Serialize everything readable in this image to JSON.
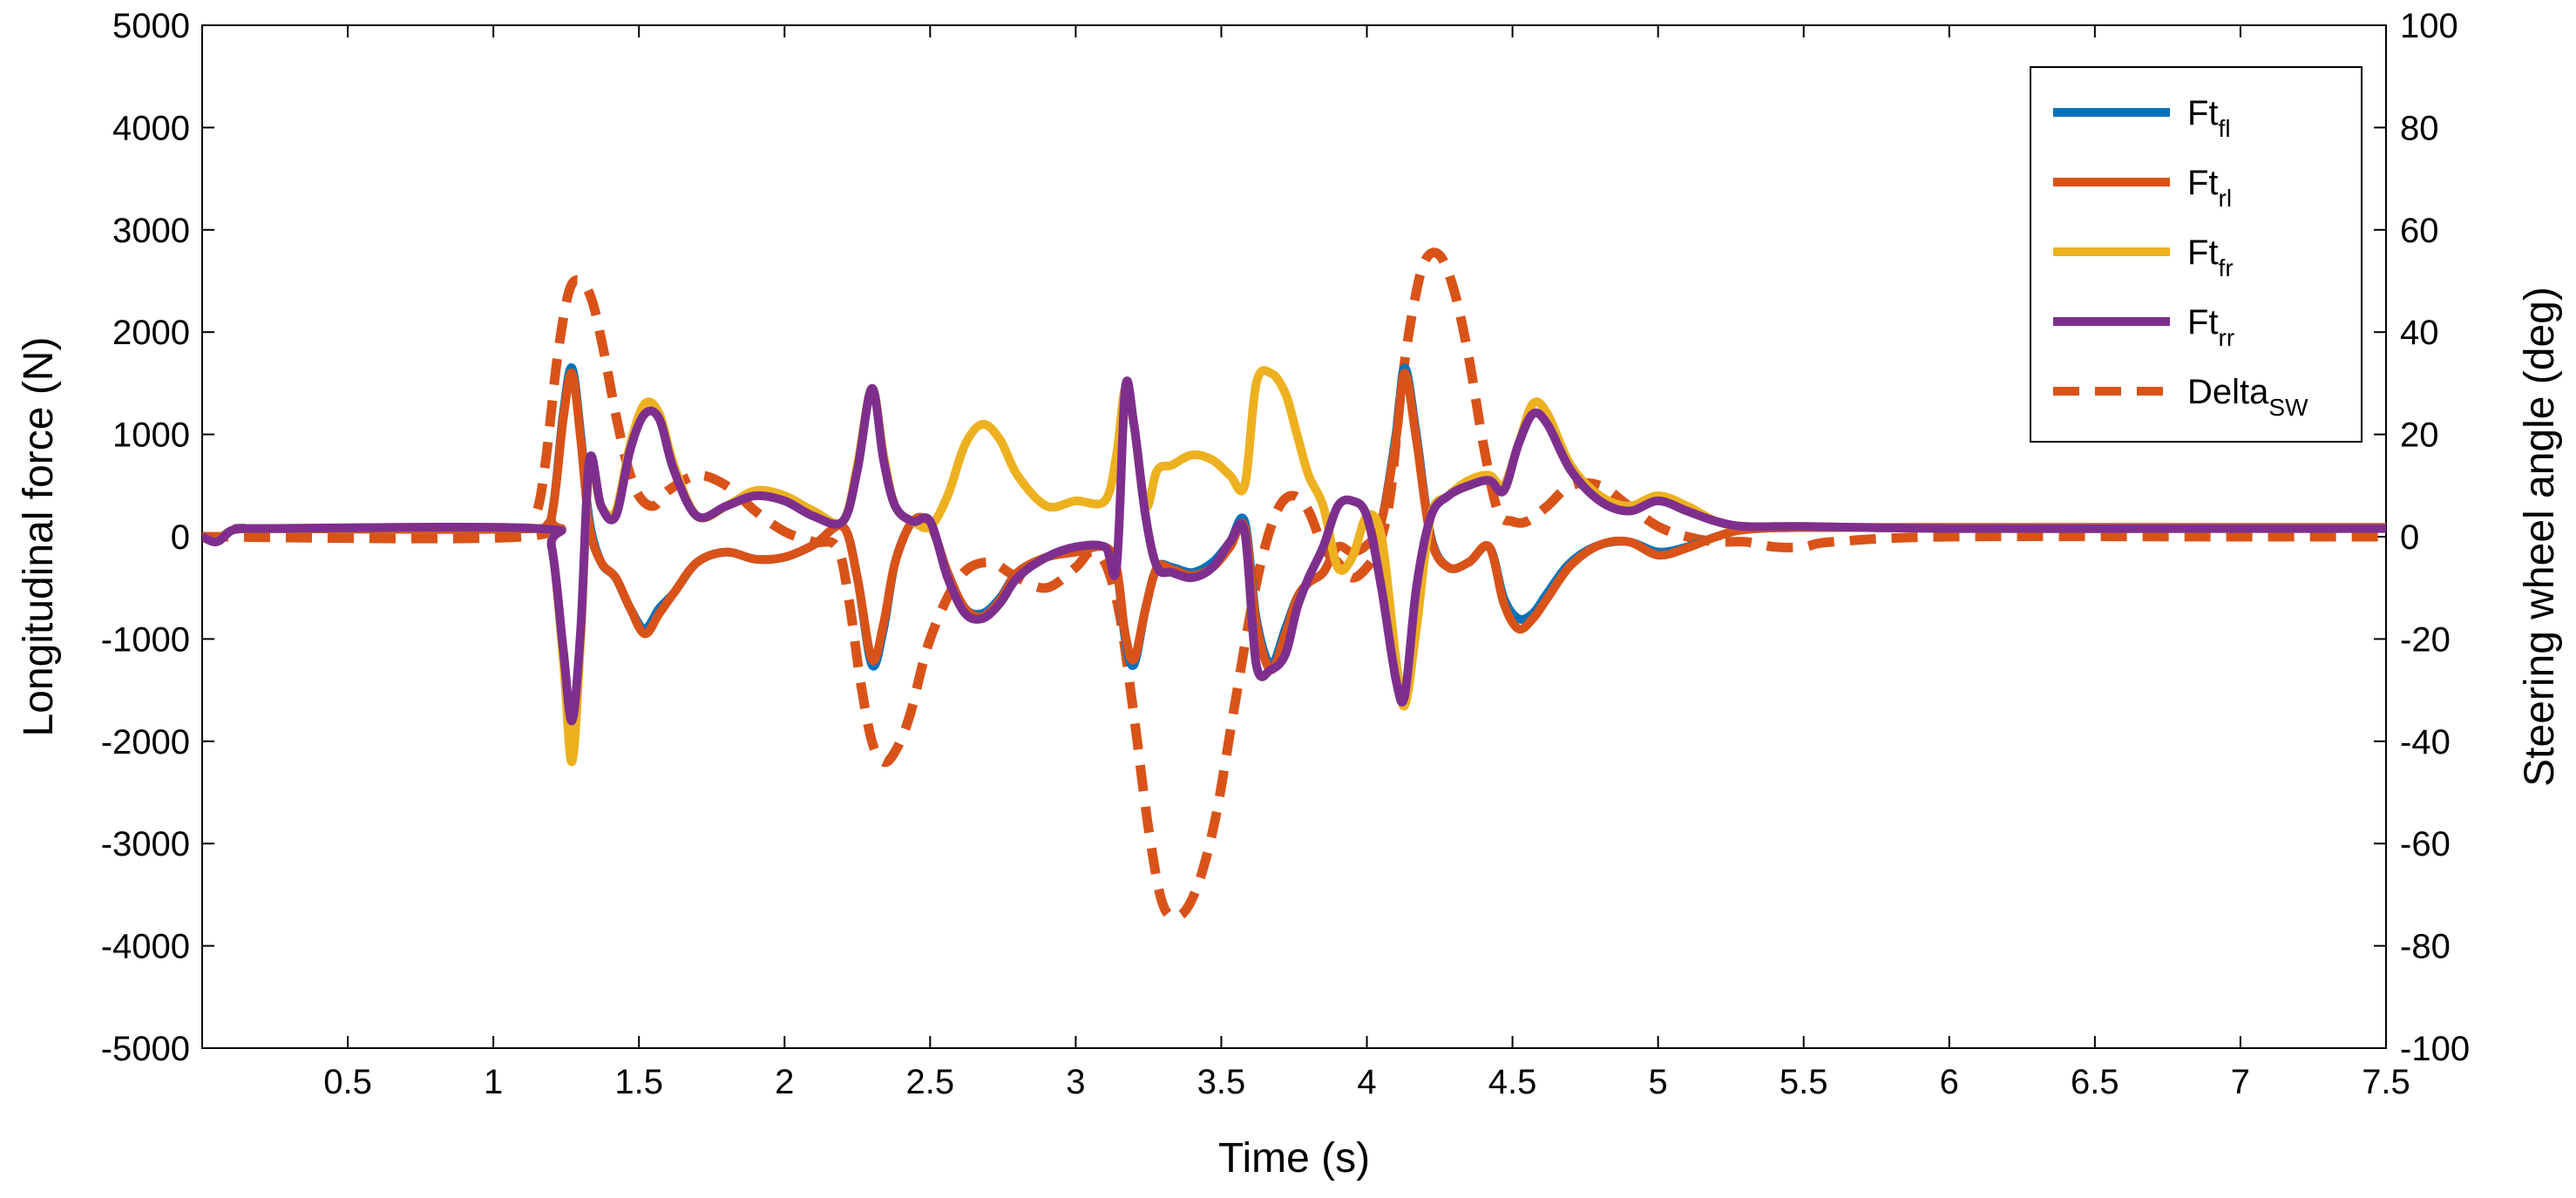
{
  "chart_data": {
    "type": "line",
    "title": "",
    "xlabel": "Time (s)",
    "ylabel_left": "Longitudinal force (N)",
    "ylabel_right": "Steering wheel angle (deg)",
    "xlim": [
      0,
      7.5
    ],
    "ylim_left": [
      -5000,
      5000
    ],
    "ylim_right": [
      -100,
      100
    ],
    "grid": false,
    "legend_position": "top-right",
    "x_ticks": [
      0.5,
      1,
      1.5,
      2,
      2.5,
      3,
      3.5,
      4,
      4.5,
      5,
      5.5,
      6,
      6.5,
      7,
      7.5
    ],
    "x_tick_labels": [
      "0.5",
      "1",
      "1.5",
      "2",
      "2.5",
      "3",
      "3.5",
      "4",
      "4.5",
      "5",
      "5.5",
      "6",
      "6.5",
      "7",
      "7.5"
    ],
    "y_left_ticks": [
      -5000,
      -4000,
      -3000,
      -2000,
      -1000,
      0,
      1000,
      2000,
      3000,
      4000,
      5000
    ],
    "y_left_tick_labels": [
      "-5000",
      "-4000",
      "-3000",
      "-2000",
      "-1000",
      "0",
      "1000",
      "2000",
      "3000",
      "4000",
      "5000"
    ],
    "y_right_ticks": [
      -100,
      -80,
      -60,
      -40,
      -20,
      0,
      20,
      40,
      60,
      80,
      100
    ],
    "y_right_tick_labels": [
      "-100",
      "-80",
      "-60",
      "-40",
      "-20",
      "0",
      "20",
      "40",
      "60",
      "80",
      "100"
    ],
    "series": [
      {
        "name": "Ft",
        "name_sub": "fl",
        "axis": "left",
        "color": "#0072BD",
        "dash": "solid",
        "x": [
          0,
          0.05,
          0.1,
          0.15,
          0.2,
          1.15,
          1.2,
          1.24,
          1.27,
          1.3,
          1.33,
          1.37,
          1.42,
          1.47,
          1.52,
          1.57,
          1.62,
          1.7,
          1.8,
          1.9,
          2.0,
          2.1,
          2.2,
          2.25,
          2.3,
          2.34,
          2.38,
          2.44,
          2.5,
          2.56,
          2.62,
          2.68,
          2.74,
          2.8,
          2.9,
          3.0,
          3.1,
          3.14,
          3.17,
          3.2,
          3.24,
          3.28,
          3.33,
          3.4,
          3.47,
          3.53,
          3.58,
          3.62,
          3.67,
          3.72,
          3.76,
          3.8,
          3.85,
          3.9,
          3.95,
          4.0,
          4.05,
          4.1,
          4.13,
          4.17,
          4.22,
          4.28,
          4.35,
          4.42,
          4.47,
          4.52,
          4.57,
          4.62,
          4.7,
          4.8,
          4.9,
          5.0,
          5.1,
          5.2,
          5.3,
          5.5,
          6,
          7,
          7.5
        ],
        "y": [
          0,
          -30,
          60,
          80,
          80,
          80,
          200,
          1200,
          1650,
          1000,
          150,
          -250,
          -400,
          -700,
          -900,
          -700,
          -550,
          -250,
          -150,
          -220,
          -200,
          -80,
          100,
          -400,
          -1250,
          -900,
          -250,
          150,
          120,
          -350,
          -700,
          -750,
          -600,
          -350,
          -200,
          -150,
          -100,
          -300,
          -1000,
          -1250,
          -700,
          -300,
          -300,
          -350,
          -250,
          -50,
          150,
          -800,
          -1250,
          -900,
          -600,
          -450,
          -350,
          -100,
          -150,
          -80,
          150,
          1000,
          1650,
          1000,
          0,
          -300,
          -250,
          -100,
          -600,
          -800,
          -750,
          -550,
          -250,
          -80,
          -50,
          -150,
          -100,
          0,
          70,
          90,
          90,
          90,
          90
        ]
      },
      {
        "name": "Ft",
        "name_sub": "rl",
        "axis": "left",
        "color": "#D95319",
        "dash": "solid",
        "x": [
          0,
          0.05,
          0.1,
          0.15,
          0.2,
          1.15,
          1.2,
          1.24,
          1.27,
          1.3,
          1.33,
          1.37,
          1.42,
          1.47,
          1.52,
          1.57,
          1.62,
          1.7,
          1.8,
          1.9,
          2.0,
          2.1,
          2.2,
          2.25,
          2.3,
          2.34,
          2.38,
          2.44,
          2.5,
          2.56,
          2.62,
          2.68,
          2.74,
          2.8,
          2.9,
          3.0,
          3.1,
          3.14,
          3.17,
          3.2,
          3.24,
          3.28,
          3.33,
          3.4,
          3.47,
          3.53,
          3.58,
          3.62,
          3.67,
          3.72,
          3.76,
          3.8,
          3.85,
          3.9,
          3.95,
          4.0,
          4.05,
          4.1,
          4.13,
          4.17,
          4.22,
          4.28,
          4.35,
          4.42,
          4.47,
          4.52,
          4.57,
          4.62,
          4.7,
          4.8,
          4.9,
          5.0,
          5.1,
          5.2,
          5.3,
          5.5,
          6,
          7,
          7.5
        ],
        "y": [
          0,
          -30,
          60,
          80,
          80,
          80,
          200,
          1150,
          1600,
          950,
          100,
          -250,
          -400,
          -700,
          -950,
          -750,
          -550,
          -250,
          -150,
          -220,
          -200,
          -80,
          100,
          -400,
          -1200,
          -850,
          -250,
          150,
          120,
          -350,
          -700,
          -780,
          -620,
          -350,
          -200,
          -150,
          -100,
          -300,
          -950,
          -1200,
          -700,
          -300,
          -320,
          -380,
          -300,
          -100,
          100,
          -850,
          -1300,
          -950,
          -600,
          -450,
          -350,
          -100,
          -150,
          -80,
          150,
          950,
          1600,
          950,
          -20,
          -300,
          -250,
          -100,
          -650,
          -900,
          -800,
          -600,
          -280,
          -80,
          -50,
          -180,
          -110,
          0,
          70,
          90,
          90,
          90,
          90
        ]
      },
      {
        "name": "Ft",
        "name_sub": "fr",
        "axis": "left",
        "color": "#EDB120",
        "dash": "solid",
        "x": [
          0,
          0.05,
          0.1,
          0.15,
          0.2,
          1.15,
          1.2,
          1.24,
          1.27,
          1.3,
          1.33,
          1.37,
          1.42,
          1.47,
          1.52,
          1.57,
          1.62,
          1.7,
          1.8,
          1.9,
          2.0,
          2.1,
          2.2,
          2.25,
          2.3,
          2.34,
          2.38,
          2.44,
          2.5,
          2.56,
          2.62,
          2.68,
          2.74,
          2.8,
          2.9,
          3.0,
          3.1,
          3.14,
          3.17,
          3.2,
          3.24,
          3.28,
          3.33,
          3.4,
          3.47,
          3.53,
          3.58,
          3.62,
          3.67,
          3.72,
          3.76,
          3.8,
          3.85,
          3.9,
          3.95,
          4.0,
          4.05,
          4.1,
          4.13,
          4.17,
          4.22,
          4.28,
          4.35,
          4.42,
          4.47,
          4.52,
          4.57,
          4.62,
          4.7,
          4.8,
          4.9,
          5.0,
          5.1,
          5.2,
          5.3,
          5.5,
          6,
          7,
          7.5
        ],
        "y": [
          0,
          -50,
          60,
          80,
          80,
          80,
          -100,
          -1200,
          -2200,
          -1000,
          700,
          300,
          250,
          900,
          1300,
          1200,
          700,
          200,
          300,
          450,
          400,
          250,
          150,
          700,
          1450,
          800,
          300,
          150,
          100,
          400,
          900,
          1100,
          950,
          600,
          300,
          350,
          350,
          800,
          1450,
          1100,
          300,
          650,
          700,
          800,
          750,
          600,
          500,
          1500,
          1600,
          1400,
          1000,
          600,
          300,
          -300,
          -200,
          200,
          0,
          -1200,
          -1650,
          -900,
          200,
          400,
          550,
          600,
          500,
          900,
          1300,
          1200,
          700,
          400,
          300,
          400,
          300,
          150,
          100,
          100,
          80,
          80,
          80
        ]
      },
      {
        "name": "Ft",
        "name_sub": "rr",
        "axis": "left",
        "color": "#7E2F8E",
        "dash": "solid",
        "x": [
          0,
          0.05,
          0.1,
          0.15,
          0.2,
          1.15,
          1.2,
          1.24,
          1.27,
          1.3,
          1.33,
          1.37,
          1.42,
          1.47,
          1.52,
          1.57,
          1.62,
          1.7,
          1.8,
          1.9,
          2.0,
          2.1,
          2.2,
          2.25,
          2.3,
          2.34,
          2.38,
          2.44,
          2.5,
          2.56,
          2.62,
          2.68,
          2.74,
          2.8,
          2.9,
          3.0,
          3.1,
          3.14,
          3.17,
          3.2,
          3.24,
          3.28,
          3.33,
          3.4,
          3.47,
          3.53,
          3.58,
          3.62,
          3.67,
          3.72,
          3.76,
          3.8,
          3.85,
          3.9,
          3.95,
          4.0,
          4.05,
          4.1,
          4.13,
          4.17,
          4.22,
          4.28,
          4.35,
          4.42,
          4.47,
          4.52,
          4.57,
          4.62,
          4.7,
          4.8,
          4.9,
          5.0,
          5.1,
          5.2,
          5.3,
          5.5,
          6,
          7,
          7.5
        ],
        "y": [
          0,
          -50,
          60,
          80,
          80,
          80,
          -100,
          -1100,
          -1800,
          -900,
          750,
          300,
          200,
          850,
          1200,
          1150,
          650,
          200,
          300,
          400,
          350,
          200,
          150,
          650,
          1450,
          750,
          300,
          150,
          150,
          -400,
          -750,
          -800,
          -650,
          -400,
          -200,
          -100,
          -100,
          -300,
          1450,
          1100,
          200,
          -300,
          -350,
          -400,
          -300,
          -50,
          50,
          -1250,
          -1300,
          -1150,
          -700,
          -400,
          -100,
          300,
          350,
          200,
          -500,
          -1400,
          -1550,
          -500,
          200,
          400,
          500,
          550,
          450,
          900,
          1200,
          1100,
          650,
          350,
          250,
          350,
          250,
          150,
          100,
          100,
          80,
          80,
          80
        ]
      },
      {
        "name": "Delta",
        "name_sub": "SW",
        "axis": "right",
        "color": "#D95319",
        "dash": "dashed",
        "x": [
          0,
          1.1,
          1.15,
          1.18,
          1.22,
          1.26,
          1.3,
          1.34,
          1.38,
          1.42,
          1.46,
          1.5,
          1.55,
          1.6,
          1.7,
          1.8,
          1.9,
          2.0,
          2.1,
          2.18,
          2.22,
          2.26,
          2.3,
          2.34,
          2.38,
          2.43,
          2.5,
          2.6,
          2.7,
          2.8,
          2.9,
          3.0,
          3.05,
          3.1,
          3.15,
          3.2,
          3.25,
          3.3,
          3.36,
          3.42,
          3.48,
          3.54,
          3.6,
          3.65,
          3.7,
          3.75,
          3.8,
          3.85,
          3.9,
          3.95,
          4.0,
          4.04,
          4.08,
          4.12,
          4.16,
          4.2,
          4.25,
          4.3,
          4.35,
          4.4,
          4.45,
          4.5,
          4.55,
          4.62,
          4.7,
          4.8,
          4.9,
          5.0,
          5.1,
          5.2,
          5.3,
          5.4,
          5.5,
          5.6,
          6,
          7,
          7.5
        ],
        "y": [
          0,
          0,
          5,
          15,
          35,
          48,
          50,
          46,
          36,
          24,
          14,
          8,
          6,
          9,
          12,
          10,
          5,
          1,
          -1,
          -2,
          -12,
          -28,
          -40,
          -44,
          -42,
          -35,
          -20,
          -8,
          -5,
          -8,
          -10,
          -6,
          -3,
          -5,
          -15,
          -35,
          -57,
          -72,
          -74,
          -68,
          -55,
          -35,
          -15,
          -2,
          6,
          8,
          5,
          -2,
          -5,
          -8,
          -6,
          -2,
          8,
          30,
          45,
          54,
          55,
          48,
          35,
          18,
          5,
          3,
          3,
          6,
          10,
          10,
          6,
          2,
          0,
          -1,
          -1,
          -2,
          -2,
          -1,
          0,
          0,
          0
        ]
      }
    ]
  }
}
